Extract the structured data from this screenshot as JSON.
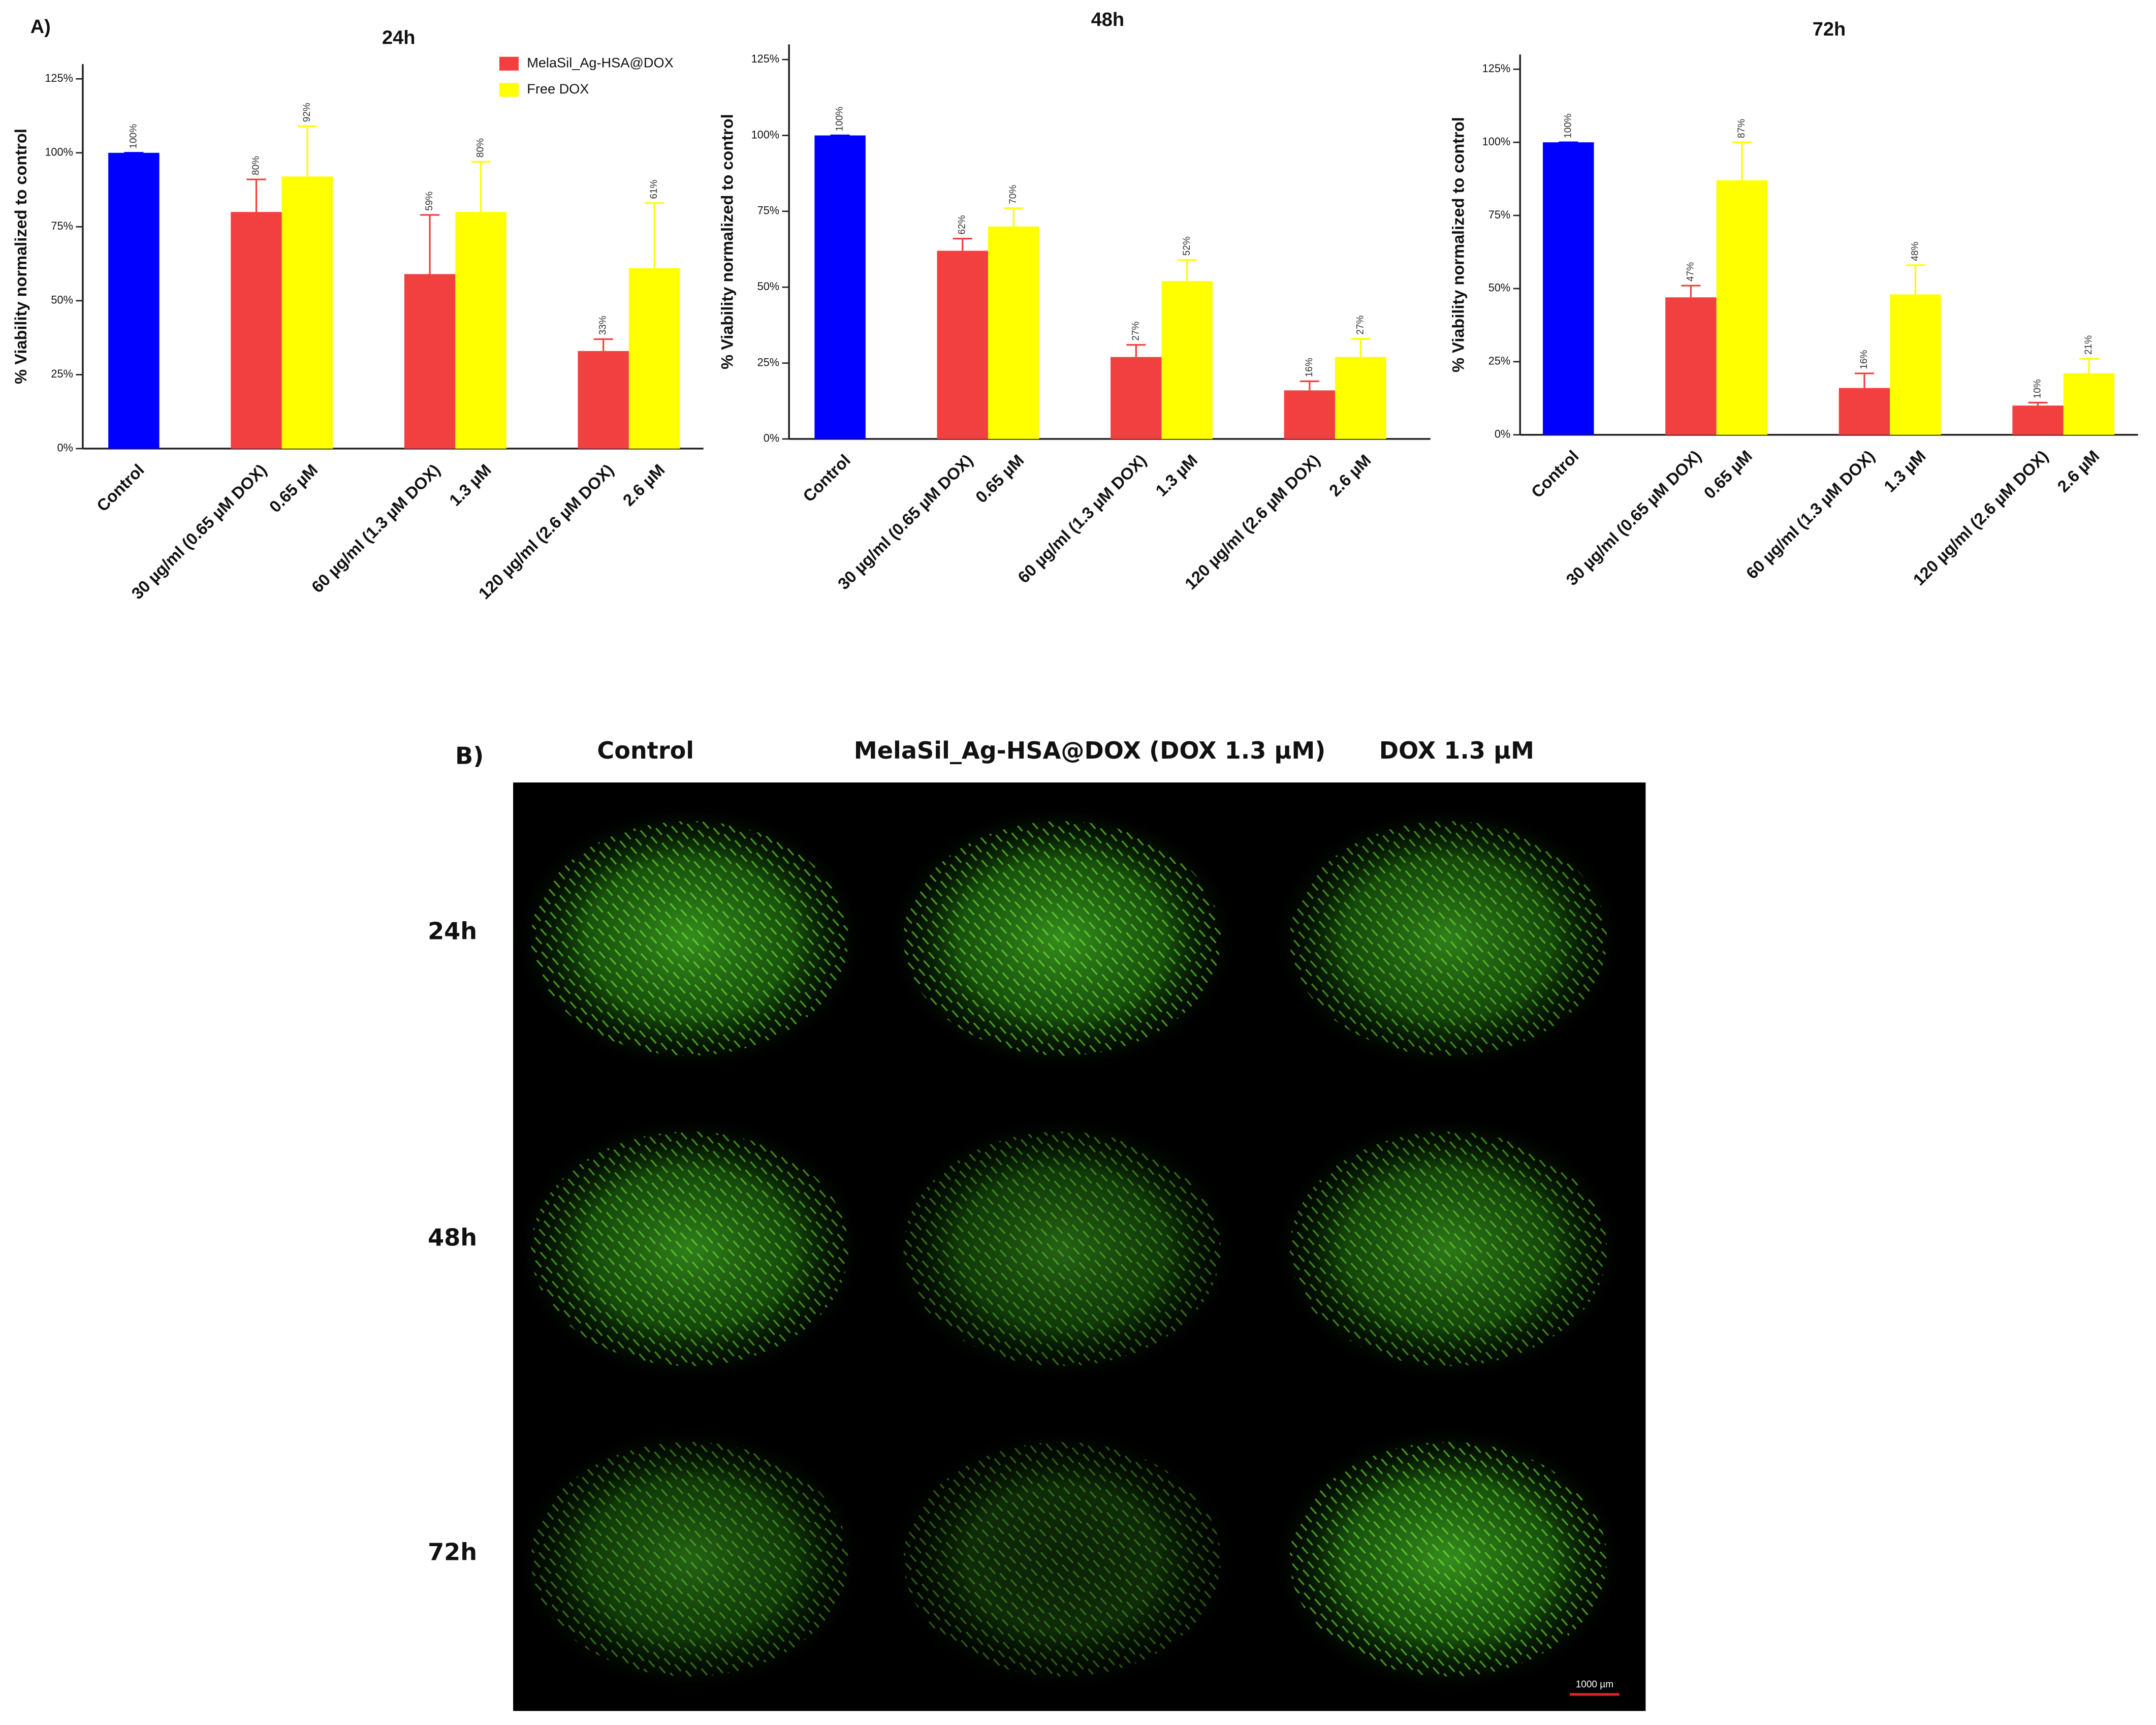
{
  "chart_data": [
    {
      "type": "bar",
      "panel": "A)",
      "title": "24h",
      "ylabel": "% Viability normalized to control",
      "categories": [
        "Control",
        "30 µg/ml (0.65 µM DOX)",
        "0.65 µM",
        "60 µg/ml (1.3 µM DOX)",
        "1.3 µM",
        "120 µg/ml (2.6 µM DOX)",
        "2.6 µM"
      ],
      "values": [
        100,
        80,
        92,
        59,
        80,
        33,
        61
      ],
      "errors": [
        0,
        11,
        17,
        20,
        17,
        4,
        22
      ],
      "value_labels": [
        "100%",
        "80%",
        "92%",
        "59%",
        "80%",
        "33%",
        "61%"
      ],
      "colors": [
        "#0000ff",
        "#f24040",
        "#ffff00",
        "#f24040",
        "#ffff00",
        "#f24040",
        "#ffff00"
      ],
      "legend": [
        {
          "name": "MelaSil_Ag-HSA@DOX",
          "color": "#f24040"
        },
        {
          "name": "Free DOX",
          "color": "#ffff00"
        }
      ],
      "ylim": [
        0,
        130
      ],
      "yticks": [
        {
          "value": 0,
          "label": "0%"
        },
        {
          "value": 25,
          "label": "25%"
        },
        {
          "value": 50,
          "label": "50%"
        },
        {
          "value": 75,
          "label": "75%"
        },
        {
          "value": 100,
          "label": "100%"
        },
        {
          "value": 125,
          "label": "125%"
        }
      ]
    },
    {
      "type": "bar",
      "title": "48h",
      "ylabel": "% Viability normalized to control",
      "categories": [
        "Control",
        "30 µg/ml (0.65 µM DOX)",
        "0.65 µM",
        "60 µg/ml (1.3 µM DOX)",
        "1.3 µM",
        "120 µg/ml (2.6 µM DOX)",
        "2.6 µM"
      ],
      "values": [
        100,
        62,
        70,
        27,
        52,
        16,
        27
      ],
      "errors": [
        0,
        4,
        6,
        4,
        7,
        3,
        6
      ],
      "value_labels": [
        "100%",
        "62%",
        "70%",
        "27%",
        "52%",
        "16%",
        "27%"
      ],
      "colors": [
        "#0000ff",
        "#f24040",
        "#ffff00",
        "#f24040",
        "#ffff00",
        "#f24040",
        "#ffff00"
      ],
      "ylim": [
        0,
        130
      ],
      "yticks": [
        {
          "value": 0,
          "label": "0%"
        },
        {
          "value": 25,
          "label": "25%"
        },
        {
          "value": 50,
          "label": "50%"
        },
        {
          "value": 75,
          "label": "75%"
        },
        {
          "value": 100,
          "label": "100%"
        },
        {
          "value": 125,
          "label": "125%"
        }
      ]
    },
    {
      "type": "bar",
      "title": "72h",
      "ylabel": "% Viability normalized to control",
      "categories": [
        "Control",
        "30 µg/ml (0.65 µM DOX)",
        "0.65 µM",
        "60 µg/ml (1.3 µM DOX)",
        "1.3 µM",
        "120 µg/ml (2.6 µM DOX)",
        "2.6 µM"
      ],
      "values": [
        100,
        47,
        87,
        16,
        48,
        10,
        21
      ],
      "errors": [
        0,
        4,
        13,
        5,
        10,
        1,
        5
      ],
      "value_labels": [
        "100%",
        "47%",
        "87%",
        "16%",
        "48%",
        "10%",
        "21%"
      ],
      "colors": [
        "#0000ff",
        "#f24040",
        "#ffff00",
        "#f24040",
        "#ffff00",
        "#f24040",
        "#ffff00"
      ],
      "ylim": [
        0,
        130
      ],
      "yticks": [
        {
          "value": 0,
          "label": "0%"
        },
        {
          "value": 25,
          "label": "25%"
        },
        {
          "value": 50,
          "label": "50%"
        },
        {
          "value": 75,
          "label": "75%"
        },
        {
          "value": 100,
          "label": "100%"
        },
        {
          "value": 125,
          "label": "125%"
        }
      ]
    }
  ],
  "panel_b": {
    "label": "B)",
    "columns": [
      "Control",
      "MelaSil_Ag-HSA@DOX (DOX 1.3 µM)",
      "DOX 1.3 µM"
    ],
    "rows": [
      "24h",
      "48h",
      "72h"
    ],
    "scale_bar": "1000 µm"
  }
}
